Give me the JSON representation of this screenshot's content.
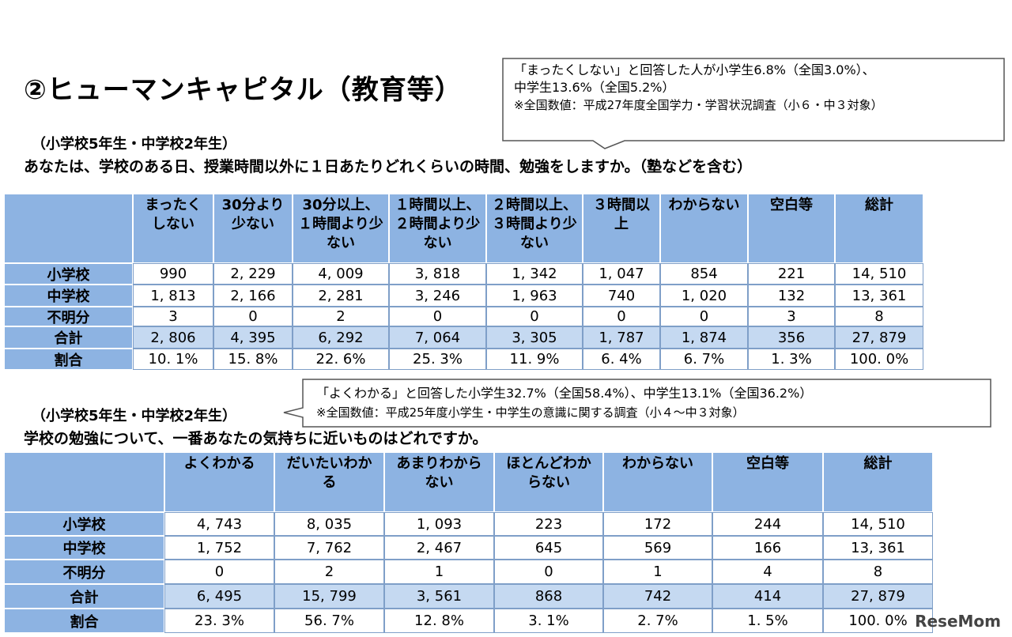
{
  "header": {
    "title": "②ヒューマンキャピタル（教育等）"
  },
  "callout1": {
    "line1": "「まったくしない」と回答した人が小学生6.8%（全国3.0%）、",
    "line2": "中学生13.6%（全国5.2%）",
    "note": "※全国数値：平成27年度全国学力・学習状況調査（小６・中３対象）"
  },
  "section1": {
    "subtitle": "（小学校5年生・中学校2年生）",
    "question": "あなたは、学校のある日、授業時間以外に１日あたりどれくらいの時間、勉強をしますか。（塾などを含む）"
  },
  "table1": {
    "columns": [
      "まったくしない",
      "30分より少ない",
      "30分以上、１時間より少ない",
      "１時間以上、２時間より少ない",
      "２時間以上、３時間より少ない",
      "３時間以上",
      "わからない",
      "空白等",
      "総計"
    ],
    "rows": [
      [
        "小学校",
        "990",
        "2, 229",
        "4, 009",
        "3, 818",
        "1, 342",
        "1, 047",
        "854",
        "221",
        "14, 510"
      ],
      [
        "中学校",
        "1, 813",
        "2, 166",
        "2, 281",
        "3, 246",
        "1, 963",
        "740",
        "1, 020",
        "132",
        "13, 361"
      ],
      [
        "不明分",
        "3",
        "0",
        "2",
        "0",
        "0",
        "0",
        "0",
        "3",
        "8"
      ],
      [
        "合計",
        "2, 806",
        "4, 395",
        "6, 292",
        "7, 064",
        "3, 305",
        "1, 787",
        "1, 874",
        "356",
        "27, 879"
      ],
      [
        "割合",
        "10. 1%",
        "15. 8%",
        "22. 6%",
        "25. 3%",
        "11. 9%",
        "6. 4%",
        "6. 7%",
        "1. 3%",
        "100. 0%"
      ]
    ]
  },
  "callout2": {
    "line1": "「よくわかる」と回答した小学生32.7%（全国58.4%）、中学生13.1%（全国36.2%）",
    "note": "※全国数値：平成25年度小学生・中学生の意識に関する調査（小４～中３対象）"
  },
  "section2": {
    "subtitle": "（小学校5年生・中学校2年生）",
    "question": "学校の勉強について、一番あなたの気持ちに近いものはどれですか。"
  },
  "table2": {
    "columns": [
      "よくわかる",
      "だいたいわかる",
      "あまりわからない",
      "ほとんどわからない",
      "わからない",
      "空白等",
      "総計"
    ],
    "rows": [
      [
        "小学校",
        "4, 743",
        "8, 035",
        "1, 093",
        "223",
        "172",
        "244",
        "14, 510"
      ],
      [
        "中学校",
        "1, 752",
        "7, 762",
        "2, 467",
        "645",
        "569",
        "166",
        "13, 361"
      ],
      [
        "不明分",
        "0",
        "2",
        "1",
        "0",
        "1",
        "4",
        "8"
      ],
      [
        "合計",
        "6, 495",
        "15, 799",
        "3, 561",
        "868",
        "742",
        "414",
        "27, 879"
      ],
      [
        "割合",
        "23. 3%",
        "56. 7%",
        "12. 8%",
        "3. 1%",
        "2. 7%",
        "1. 5%",
        "100. 0%"
      ]
    ]
  },
  "watermark": "ReseMom"
}
